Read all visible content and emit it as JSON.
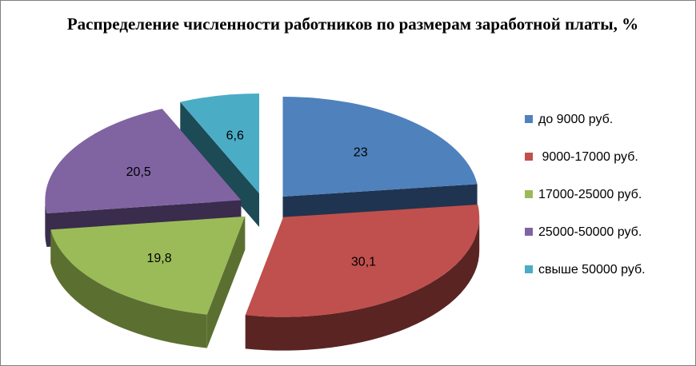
{
  "chart_data": {
    "type": "pie",
    "title": "Распределение численности работников по размерам заработной платы, %",
    "categories": [
      "до 9000 руб.",
      " 9000-17000 руб.",
      "17000-25000 руб.",
      "25000-50000 руб.",
      "свыше 50000 руб."
    ],
    "values": [
      23,
      30.1,
      19.8,
      20.5,
      6.6
    ],
    "value_labels": [
      "23",
      "30,1",
      "19,8",
      "20,5",
      "6,6"
    ],
    "colors": [
      "#4f81bd",
      "#c0504d",
      "#9bbb59",
      "#8064a2",
      "#4bacc6"
    ],
    "side_colors": [
      "#1f3450",
      "#5a2423",
      "#5b7030",
      "#3a2c4c",
      "#1c4a55"
    ],
    "style": "3d-exploded",
    "legend": "right"
  }
}
